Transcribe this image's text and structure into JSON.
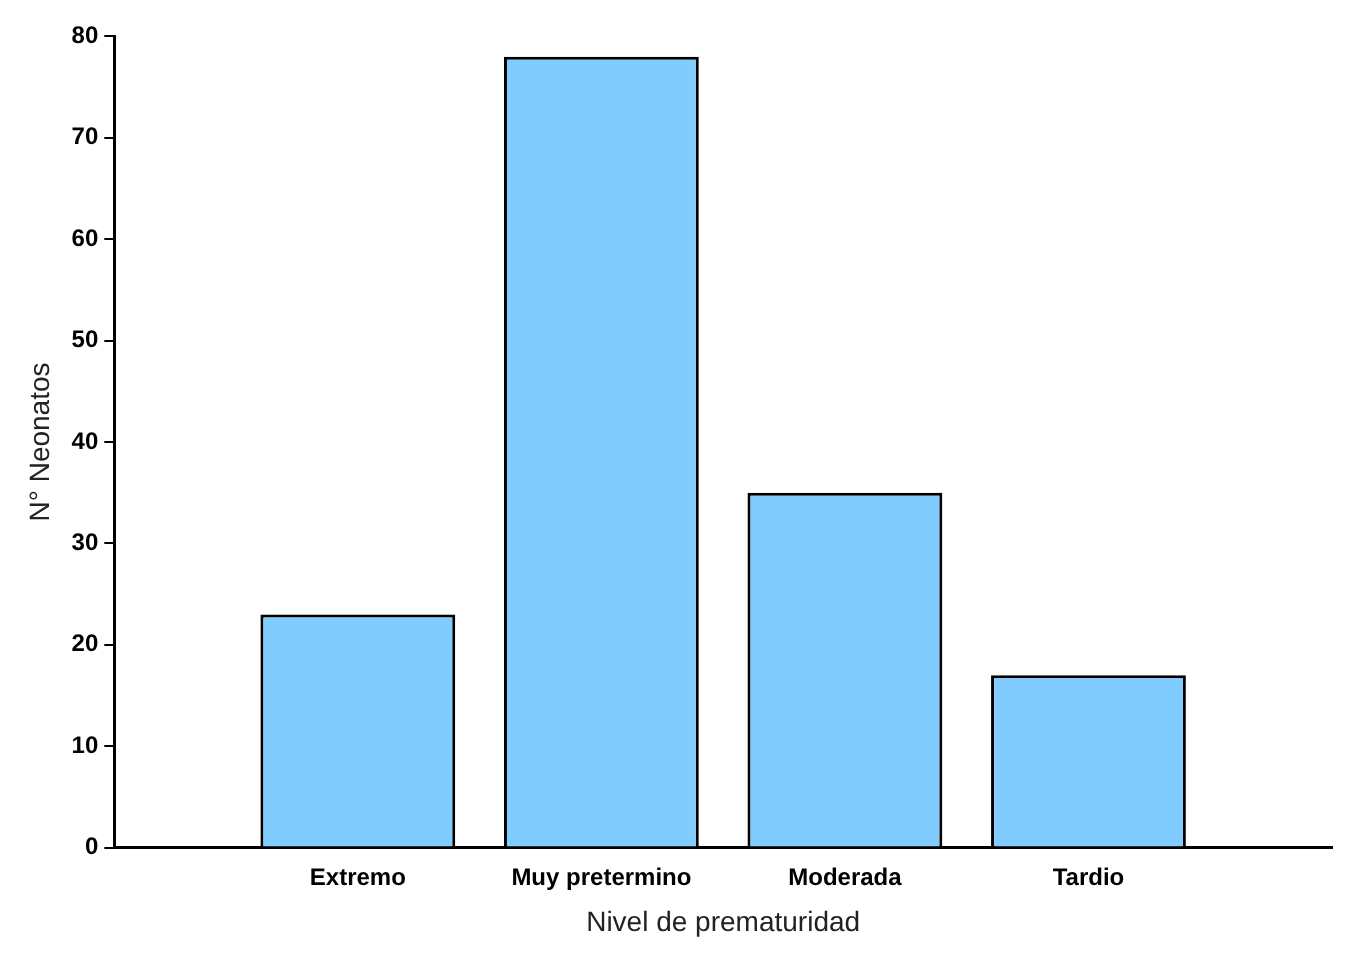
{
  "chart_data": {
    "type": "bar",
    "xlabel": "Nivel de prematuridad",
    "ylabel": "N° Neonatos",
    "categories": [
      null,
      "Extremo",
      "Muy pretermino",
      "Moderada",
      "Tardio",
      null
    ],
    "values": [
      null,
      23,
      78,
      35,
      17,
      null
    ],
    "color": "#80ccff",
    "ylim": [
      0,
      80
    ],
    "yticks": [
      0,
      10,
      20,
      30,
      40,
      50,
      60,
      70,
      80
    ],
    "grid": false,
    "legend": false
  }
}
